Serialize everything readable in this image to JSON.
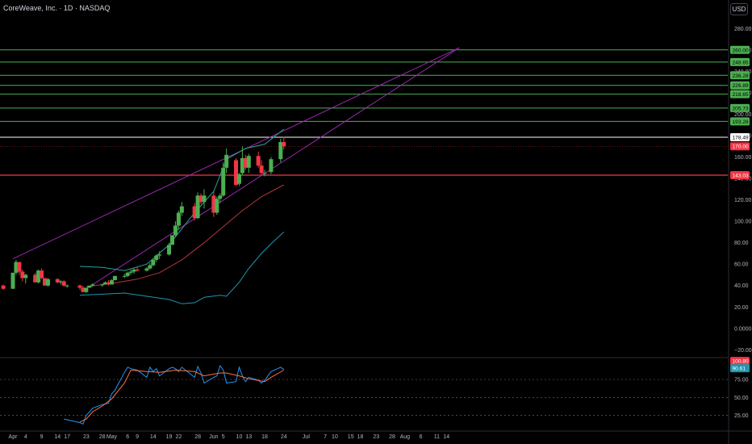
{
  "header": {
    "title": "CoreWeave, Inc. · 1D · NASDAQ",
    "currency_button": "USD"
  },
  "colors": {
    "up": "#26a69a",
    "up_body": "#4caf50",
    "down": "#f23645",
    "resistance": "#4caf50",
    "support": "#f23645",
    "current_price": "#ffffff",
    "trendline": "#9c27b0",
    "bb_upper": "#26a69a",
    "ma_slow": "#b2363d",
    "ma_lower": "#2196b0",
    "rsi_line": "#2196f3",
    "rsi_signal": "#ff7043",
    "price_label_green": "#4caf50"
  },
  "chart_data": {
    "type": "candlestick",
    "symbol": "CoreWeave, Inc.",
    "interval": "1D",
    "exchange": "NASDAQ",
    "y_range": [
      -25,
      290
    ],
    "price_ticks": [
      "280.00",
      "260.00",
      "240.00",
      "220.00",
      "200.00",
      "180.00",
      "160.00",
      "140.00",
      "120.00",
      "100.00",
      "80.00",
      "60.00",
      "40.00",
      "20.00",
      "0.0000",
      "−20.00"
    ],
    "x_ticks": [
      {
        "label": "Apr",
        "date": "2025-03-31"
      },
      {
        "label": "4",
        "date": "2025-04-04"
      },
      {
        "label": "9",
        "date": "2025-04-09"
      },
      {
        "label": "14",
        "date": "2025-04-14"
      },
      {
        "label": "17",
        "date": "2025-04-17"
      },
      {
        "label": "23",
        "date": "2025-04-23"
      },
      {
        "label": "28",
        "date": "2025-04-28"
      },
      {
        "label": "May",
        "date": "2025-05-01"
      },
      {
        "label": "6",
        "date": "2025-05-06"
      },
      {
        "label": "9",
        "date": "2025-05-09"
      },
      {
        "label": "14",
        "date": "2025-05-14"
      },
      {
        "label": "19",
        "date": "2025-05-19"
      },
      {
        "label": "22",
        "date": "2025-05-22"
      },
      {
        "label": "28",
        "date": "2025-05-28"
      },
      {
        "label": "Jun",
        "date": "2025-06-02"
      },
      {
        "label": "5",
        "date": "2025-06-05"
      },
      {
        "label": "10",
        "date": "2025-06-10"
      },
      {
        "label": "13",
        "date": "2025-06-13"
      },
      {
        "label": "18",
        "date": "2025-06-18"
      },
      {
        "label": "24",
        "date": "2025-06-24"
      },
      {
        "label": "Jul",
        "date": "2025-07-01"
      },
      {
        "label": "7",
        "date": "2025-07-07"
      },
      {
        "label": "10",
        "date": "2025-07-10"
      },
      {
        "label": "15",
        "date": "2025-07-15"
      },
      {
        "label": "18",
        "date": "2025-07-18"
      },
      {
        "label": "23",
        "date": "2025-07-23"
      },
      {
        "label": "28",
        "date": "2025-07-28"
      },
      {
        "label": "Aug",
        "date": "2025-08-01"
      },
      {
        "label": "6",
        "date": "2025-08-06"
      },
      {
        "label": "11",
        "date": "2025-08-11"
      },
      {
        "label": "14",
        "date": "2025-08-14"
      }
    ],
    "candles": [
      {
        "t": "2025-03-28",
        "o": 40,
        "h": 41,
        "l": 36,
        "c": 37
      },
      {
        "t": "2025-03-31",
        "o": 37,
        "h": 52,
        "l": 37,
        "c": 52
      },
      {
        "t": "2025-04-01",
        "o": 52,
        "h": 64,
        "l": 50,
        "c": 62
      },
      {
        "t": "2025-04-02",
        "o": 62,
        "h": 62,
        "l": 50,
        "c": 53
      },
      {
        "t": "2025-04-03",
        "o": 53,
        "h": 55,
        "l": 44,
        "c": 47
      },
      {
        "t": "2025-04-04",
        "o": 47,
        "h": 51,
        "l": 42,
        "c": 50
      },
      {
        "t": "2025-04-07",
        "o": 50,
        "h": 52,
        "l": 43,
        "c": 43
      },
      {
        "t": "2025-04-08",
        "o": 43,
        "h": 55,
        "l": 42,
        "c": 54
      },
      {
        "t": "2025-04-09",
        "o": 54,
        "h": 56,
        "l": 46,
        "c": 47
      },
      {
        "t": "2025-04-10",
        "o": 47,
        "h": 47,
        "l": 40,
        "c": 40
      },
      {
        "t": "2025-04-11",
        "o": 40,
        "h": 47,
        "l": 39,
        "c": 46
      },
      {
        "t": "2025-04-14",
        "o": 46,
        "h": 47,
        "l": 42,
        "c": 43
      },
      {
        "t": "2025-04-15",
        "o": 43,
        "h": 45,
        "l": 41,
        "c": 44
      },
      {
        "t": "2025-04-16",
        "o": 44,
        "h": 45,
        "l": 39,
        "c": 40
      },
      {
        "t": "2025-04-17",
        "o": 40,
        "h": 41,
        "l": 38,
        "c": 40
      },
      {
        "t": "2025-04-21",
        "o": 40,
        "h": 41,
        "l": 36,
        "c": 38
      },
      {
        "t": "2025-04-22",
        "o": 38,
        "h": 40,
        "l": 34,
        "c": 34
      },
      {
        "t": "2025-04-23",
        "o": 34,
        "h": 38,
        "l": 33,
        "c": 38
      },
      {
        "t": "2025-04-24",
        "o": 38,
        "h": 40,
        "l": 38,
        "c": 40
      },
      {
        "t": "2025-04-25",
        "o": 40,
        "h": 42,
        "l": 39,
        "c": 41
      },
      {
        "t": "2025-04-28",
        "o": 41,
        "h": 42,
        "l": 39,
        "c": 41
      },
      {
        "t": "2025-04-29",
        "o": 41,
        "h": 44,
        "l": 41,
        "c": 43
      },
      {
        "t": "2025-04-30",
        "o": 43,
        "h": 45,
        "l": 40,
        "c": 41
      },
      {
        "t": "2025-05-01",
        "o": 41,
        "h": 46,
        "l": 41,
        "c": 45
      },
      {
        "t": "2025-05-02",
        "o": 45,
        "h": 49,
        "l": 45,
        "c": 49
      },
      {
        "t": "2025-05-05",
        "o": 49,
        "h": 51,
        "l": 47,
        "c": 49
      },
      {
        "t": "2025-05-06",
        "o": 49,
        "h": 53,
        "l": 48,
        "c": 52
      },
      {
        "t": "2025-05-07",
        "o": 52,
        "h": 55,
        "l": 50,
        "c": 53
      },
      {
        "t": "2025-05-08",
        "o": 53,
        "h": 56,
        "l": 51,
        "c": 55
      },
      {
        "t": "2025-05-09",
        "o": 55,
        "h": 57,
        "l": 53,
        "c": 54
      },
      {
        "t": "2025-05-12",
        "o": 54,
        "h": 57,
        "l": 53,
        "c": 56
      },
      {
        "t": "2025-05-13",
        "o": 56,
        "h": 61,
        "l": 55,
        "c": 59
      },
      {
        "t": "2025-05-14",
        "o": 59,
        "h": 65,
        "l": 58,
        "c": 64
      },
      {
        "t": "2025-05-15",
        "o": 64,
        "h": 69,
        "l": 62,
        "c": 68
      },
      {
        "t": "2025-05-16",
        "o": 68,
        "h": 72,
        "l": 65,
        "c": 69
      },
      {
        "t": "2025-05-19",
        "o": 69,
        "h": 80,
        "l": 68,
        "c": 78
      },
      {
        "t": "2025-05-20",
        "o": 78,
        "h": 87,
        "l": 78,
        "c": 87
      },
      {
        "t": "2025-05-21",
        "o": 87,
        "h": 100,
        "l": 85,
        "c": 96
      },
      {
        "t": "2025-05-22",
        "o": 96,
        "h": 110,
        "l": 92,
        "c": 108
      },
      {
        "t": "2025-05-23",
        "o": 108,
        "h": 118,
        "l": 105,
        "c": 114
      },
      {
        "t": "2025-05-27",
        "o": 114,
        "h": 117,
        "l": 101,
        "c": 103
      },
      {
        "t": "2025-05-28",
        "o": 103,
        "h": 127,
        "l": 102,
        "c": 124
      },
      {
        "t": "2025-05-29",
        "o": 124,
        "h": 126,
        "l": 116,
        "c": 118
      },
      {
        "t": "2025-05-30",
        "o": 118,
        "h": 130,
        "l": 112,
        "c": 124
      },
      {
        "t": "2025-06-02",
        "o": 124,
        "h": 128,
        "l": 104,
        "c": 108
      },
      {
        "t": "2025-06-03",
        "o": 108,
        "h": 123,
        "l": 106,
        "c": 121
      },
      {
        "t": "2025-06-04",
        "o": 121,
        "h": 126,
        "l": 117,
        "c": 124
      },
      {
        "t": "2025-06-05",
        "o": 124,
        "h": 155,
        "l": 123,
        "c": 150
      },
      {
        "t": "2025-06-06",
        "o": 150,
        "h": 168,
        "l": 145,
        "c": 162
      },
      {
        "t": "2025-06-09",
        "o": 157,
        "h": 159,
        "l": 133,
        "c": 134
      },
      {
        "t": "2025-06-10",
        "o": 135,
        "h": 145,
        "l": 133,
        "c": 144
      },
      {
        "t": "2025-06-11",
        "o": 145,
        "h": 170,
        "l": 143,
        "c": 159
      },
      {
        "t": "2025-06-12",
        "o": 159,
        "h": 162,
        "l": 148,
        "c": 150
      },
      {
        "t": "2025-06-13",
        "o": 150,
        "h": 163,
        "l": 145,
        "c": 161
      },
      {
        "t": "2025-06-16",
        "o": 161,
        "h": 165,
        "l": 150,
        "c": 152
      },
      {
        "t": "2025-06-17",
        "o": 152,
        "h": 157,
        "l": 143,
        "c": 145
      },
      {
        "t": "2025-06-18",
        "o": 145,
        "h": 148,
        "l": 142,
        "c": 145
      },
      {
        "t": "2025-06-20",
        "o": 146,
        "h": 160,
        "l": 144,
        "c": 158
      },
      {
        "t": "2025-06-23",
        "o": 158,
        "h": 177,
        "l": 155,
        "c": 174
      },
      {
        "t": "2025-06-24",
        "o": 174,
        "h": 179,
        "l": 167,
        "c": 170
      }
    ],
    "horizontal_levels": [
      {
        "value": 260,
        "label": "260.00",
        "kind": "resistance"
      },
      {
        "value": 248.65,
        "label": "248.65",
        "kind": "resistance"
      },
      {
        "value": 236.28,
        "label": "236.28",
        "kind": "resistance"
      },
      {
        "value": 226.89,
        "label": "226.89",
        "kind": "resistance"
      },
      {
        "value": 218.65,
        "label": "218.65",
        "kind": "resistance"
      },
      {
        "value": 205.73,
        "label": "205.73",
        "kind": "resistance"
      },
      {
        "value": 193.28,
        "label": "193.28",
        "kind": "resistance"
      },
      {
        "value": 178.49,
        "label": "178.49",
        "kind": "current"
      },
      {
        "value": 170.0,
        "label": "170.00",
        "kind": "last"
      },
      {
        "value": 143.03,
        "label": "143.03",
        "kind": "support"
      }
    ],
    "trendlines": [
      {
        "from": {
          "t": "2025-03-31",
          "v": 65
        },
        "to": {
          "t": "2025-08-18",
          "v": 262
        }
      },
      {
        "from": {
          "t": "2025-04-23",
          "v": 37
        },
        "to": {
          "t": "2025-08-18",
          "v": 262
        }
      }
    ],
    "bb_upper": [
      {
        "t": "2025-04-21",
        "v": 58
      },
      {
        "t": "2025-04-28",
        "v": 57
      },
      {
        "t": "2025-05-05",
        "v": 54
      },
      {
        "t": "2025-05-12",
        "v": 60
      },
      {
        "t": "2025-05-19",
        "v": 78
      },
      {
        "t": "2025-05-27",
        "v": 108
      },
      {
        "t": "2025-06-02",
        "v": 128
      },
      {
        "t": "2025-06-06",
        "v": 158
      },
      {
        "t": "2025-06-12",
        "v": 168
      },
      {
        "t": "2025-06-18",
        "v": 172
      },
      {
        "t": "2025-06-24",
        "v": 186
      }
    ],
    "ma_slow": [
      {
        "t": "2025-04-23",
        "v": 39
      },
      {
        "t": "2025-05-01",
        "v": 42
      },
      {
        "t": "2025-05-09",
        "v": 46
      },
      {
        "t": "2025-05-16",
        "v": 52
      },
      {
        "t": "2025-05-23",
        "v": 64
      },
      {
        "t": "2025-05-30",
        "v": 80
      },
      {
        "t": "2025-06-05",
        "v": 95
      },
      {
        "t": "2025-06-11",
        "v": 110
      },
      {
        "t": "2025-06-17",
        "v": 123
      },
      {
        "t": "2025-06-24",
        "v": 134
      }
    ],
    "bb_lower": [
      {
        "t": "2025-04-21",
        "v": 31
      },
      {
        "t": "2025-04-28",
        "v": 32
      },
      {
        "t": "2025-05-05",
        "v": 33
      },
      {
        "t": "2025-05-12",
        "v": 30
      },
      {
        "t": "2025-05-19",
        "v": 27
      },
      {
        "t": "2025-05-23",
        "v": 23
      },
      {
        "t": "2025-05-27",
        "v": 24
      },
      {
        "t": "2025-05-30",
        "v": 29
      },
      {
        "t": "2025-06-04",
        "v": 31
      },
      {
        "t": "2025-06-06",
        "v": 30
      },
      {
        "t": "2025-06-10",
        "v": 43
      },
      {
        "t": "2025-06-13",
        "v": 56
      },
      {
        "t": "2025-06-17",
        "v": 70
      },
      {
        "t": "2025-06-20",
        "v": 79
      },
      {
        "t": "2025-06-24",
        "v": 90
      }
    ],
    "rsi": {
      "y_range": [
        10,
        102
      ],
      "ticks": [
        "25.00",
        "50.00",
        "75.00"
      ],
      "labels": [
        {
          "value": 100.8,
          "label": "100.80",
          "color": "#f23645"
        },
        {
          "value": 90.61,
          "label": "90.61",
          "color": "#2196b0"
        }
      ],
      "k": [
        {
          "t": "2025-04-16",
          "v": 20
        },
        {
          "t": "2025-04-21",
          "v": 15
        },
        {
          "t": "2025-04-22",
          "v": 13
        },
        {
          "t": "2025-04-23",
          "v": 25
        },
        {
          "t": "2025-04-25",
          "v": 35
        },
        {
          "t": "2025-04-28",
          "v": 40
        },
        {
          "t": "2025-04-30",
          "v": 42
        },
        {
          "t": "2025-05-01",
          "v": 55
        },
        {
          "t": "2025-05-02",
          "v": 60
        },
        {
          "t": "2025-05-05",
          "v": 85
        },
        {
          "t": "2025-05-06",
          "v": 92
        },
        {
          "t": "2025-05-07",
          "v": 90
        },
        {
          "t": "2025-05-09",
          "v": 88
        },
        {
          "t": "2025-05-12",
          "v": 78
        },
        {
          "t": "2025-05-13",
          "v": 92
        },
        {
          "t": "2025-05-14",
          "v": 86
        },
        {
          "t": "2025-05-15",
          "v": 90
        },
        {
          "t": "2025-05-16",
          "v": 80
        },
        {
          "t": "2025-05-19",
          "v": 90
        },
        {
          "t": "2025-05-20",
          "v": 92
        },
        {
          "t": "2025-05-21",
          "v": 90
        },
        {
          "t": "2025-05-22",
          "v": 86
        },
        {
          "t": "2025-05-23",
          "v": 92
        },
        {
          "t": "2025-05-27",
          "v": 78
        },
        {
          "t": "2025-05-28",
          "v": 93
        },
        {
          "t": "2025-05-29",
          "v": 84
        },
        {
          "t": "2025-05-30",
          "v": 70
        },
        {
          "t": "2025-06-02",
          "v": 78
        },
        {
          "t": "2025-06-03",
          "v": 80
        },
        {
          "t": "2025-06-04",
          "v": 94
        },
        {
          "t": "2025-06-05",
          "v": 88
        },
        {
          "t": "2025-06-06",
          "v": 70
        },
        {
          "t": "2025-06-09",
          "v": 72
        },
        {
          "t": "2025-06-10",
          "v": 92
        },
        {
          "t": "2025-06-11",
          "v": 80
        },
        {
          "t": "2025-06-12",
          "v": 72
        },
        {
          "t": "2025-06-13",
          "v": 78
        },
        {
          "t": "2025-06-16",
          "v": 74
        },
        {
          "t": "2025-06-17",
          "v": 70
        },
        {
          "t": "2025-06-18",
          "v": 74
        },
        {
          "t": "2025-06-20",
          "v": 86
        },
        {
          "t": "2025-06-23",
          "v": 92
        },
        {
          "t": "2025-06-24",
          "v": 89
        }
      ],
      "d": [
        {
          "t": "2025-04-21",
          "v": 16
        },
        {
          "t": "2025-04-23",
          "v": 20
        },
        {
          "t": "2025-04-25",
          "v": 30
        },
        {
          "t": "2025-04-28",
          "v": 38
        },
        {
          "t": "2025-05-01",
          "v": 48
        },
        {
          "t": "2025-05-05",
          "v": 70
        },
        {
          "t": "2025-05-07",
          "v": 88
        },
        {
          "t": "2025-05-12",
          "v": 86
        },
        {
          "t": "2025-05-16",
          "v": 85
        },
        {
          "t": "2025-05-21",
          "v": 88
        },
        {
          "t": "2025-05-27",
          "v": 86
        },
        {
          "t": "2025-05-30",
          "v": 80
        },
        {
          "t": "2025-06-04",
          "v": 84
        },
        {
          "t": "2025-06-06",
          "v": 84
        },
        {
          "t": "2025-06-10",
          "v": 80
        },
        {
          "t": "2025-06-13",
          "v": 76
        },
        {
          "t": "2025-06-18",
          "v": 72
        },
        {
          "t": "2025-06-20",
          "v": 78
        },
        {
          "t": "2025-06-24",
          "v": 88
        }
      ]
    }
  }
}
